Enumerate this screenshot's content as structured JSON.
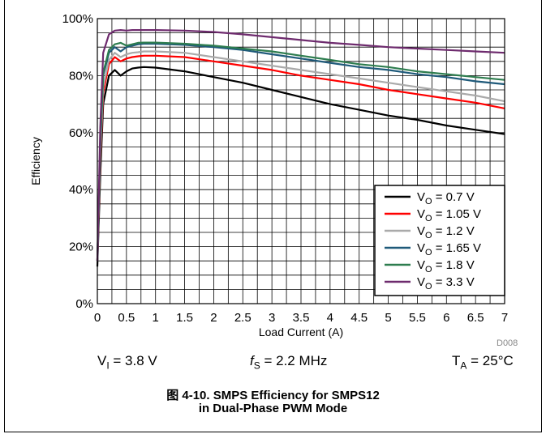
{
  "chart_data": {
    "type": "line",
    "title": "",
    "xlabel": "Load Current (A)",
    "ylabel": "Efficiency",
    "xlim": [
      0,
      7
    ],
    "ylim": [
      0,
      100
    ],
    "x_ticks": [
      "0",
      "0.5",
      "1",
      "1.5",
      "2",
      "2.5",
      "3",
      "3.5",
      "4",
      "4.5",
      "5",
      "5.5",
      "6",
      "6.5",
      "7"
    ],
    "y_ticks": [
      "0%",
      "20%",
      "40%",
      "60%",
      "80%",
      "100%"
    ],
    "grid": true,
    "legend_position": "bottom-right",
    "series": [
      {
        "name": "VO = 0.7 V",
        "legend_base": "V",
        "legend_sub": "O",
        "legend_value": " = 0.7 V",
        "color": "#000000",
        "x": [
          0,
          0.05,
          0.1,
          0.2,
          0.3,
          0.4,
          0.5,
          0.6,
          0.7,
          0.8,
          1.0,
          1.5,
          2.0,
          2.5,
          3.0,
          3.5,
          4.0,
          4.5,
          5.0,
          5.5,
          6.0,
          6.5,
          7.0
        ],
        "y": [
          13,
          45,
          70,
          80,
          82,
          80,
          81.5,
          82.5,
          82.8,
          83,
          82.8,
          81.5,
          79.5,
          77.5,
          75,
          72.5,
          70,
          68,
          66,
          64.5,
          62.5,
          61,
          59.5
        ]
      },
      {
        "name": "VO = 1.05 V",
        "legend_base": "V",
        "legend_sub": "O",
        "legend_value": " = 1.05 V",
        "color": "#ff0000",
        "x": [
          0,
          0.05,
          0.1,
          0.2,
          0.3,
          0.4,
          0.5,
          0.6,
          0.7,
          0.8,
          1.0,
          1.5,
          2.0,
          2.5,
          3.0,
          3.5,
          4.0,
          4.5,
          5.0,
          5.5,
          6.0,
          6.5,
          7.0
        ],
        "y": [
          15,
          50,
          74,
          84,
          86.5,
          85,
          86,
          86.5,
          86.8,
          87,
          87,
          86.5,
          85,
          83.5,
          82,
          80,
          78.5,
          77,
          75,
          73.5,
          72,
          70.5,
          68.5
        ]
      },
      {
        "name": "VO = 1.2 V",
        "legend_base": "V",
        "legend_sub": "O",
        "legend_value": " = 1.2 V",
        "color": "#aaaaaa",
        "x": [
          0,
          0.05,
          0.1,
          0.2,
          0.3,
          0.4,
          0.5,
          0.6,
          0.7,
          0.8,
          1.0,
          1.5,
          2.0,
          2.5,
          3.0,
          3.5,
          4.0,
          4.5,
          5.0,
          5.5,
          6.0,
          6.5,
          7.0
        ],
        "y": [
          15,
          52,
          76,
          85.5,
          88,
          86.5,
          87.5,
          88,
          88.2,
          88.5,
          88.5,
          88,
          86.5,
          85,
          83.5,
          82,
          80.5,
          79,
          77.5,
          76,
          74.5,
          73,
          71
        ]
      },
      {
        "name": "VO = 1.65 V",
        "legend_base": "V",
        "legend_sub": "O",
        "legend_value": " = 1.65 V",
        "color": "#1f5a7a",
        "x": [
          0,
          0.05,
          0.1,
          0.2,
          0.3,
          0.4,
          0.5,
          0.6,
          0.7,
          0.8,
          1.0,
          1.5,
          2.0,
          2.5,
          3.0,
          3.5,
          4.0,
          4.5,
          5.0,
          5.5,
          6.0,
          6.5,
          7.0
        ],
        "y": [
          15,
          55,
          80,
          88,
          90,
          88.5,
          90,
          90.5,
          91,
          91.2,
          91.2,
          90.8,
          90,
          89,
          87.5,
          86,
          84.5,
          83,
          82,
          80.5,
          79.5,
          78,
          77
        ]
      },
      {
        "name": "VO = 1.8 V",
        "legend_base": "V",
        "legend_sub": "O",
        "legend_value": " = 1.8 V",
        "color": "#2e7d4f",
        "x": [
          0,
          0.05,
          0.1,
          0.2,
          0.3,
          0.4,
          0.5,
          0.6,
          0.7,
          0.8,
          1.0,
          1.5,
          2.0,
          2.5,
          3.0,
          3.5,
          4.0,
          4.5,
          5.0,
          5.5,
          6.0,
          6.5,
          7.0
        ],
        "y": [
          15,
          56,
          81,
          89,
          91,
          91.5,
          90.5,
          91,
          91.5,
          91.6,
          91.6,
          91.2,
          90.5,
          89.5,
          88.5,
          87,
          85.5,
          84,
          83,
          81.5,
          80.5,
          79.5,
          78.5
        ]
      },
      {
        "name": "VO = 3.3 V",
        "legend_base": "V",
        "legend_sub": "O",
        "legend_value": " = 3.3 V",
        "color": "#6e2b6e",
        "x": [
          0,
          0.05,
          0.1,
          0.2,
          0.3,
          0.4,
          0.5,
          0.6,
          0.7,
          0.8,
          1.0,
          1.5,
          2.0,
          2.5,
          3.0,
          3.5,
          4.0,
          4.5,
          5.0,
          5.5,
          6.0,
          6.5,
          7.0
        ],
        "y": [
          15,
          62,
          88,
          94.5,
          95.8,
          96,
          95.8,
          96,
          96,
          96,
          96,
          95.8,
          95.3,
          94.5,
          93.5,
          92.5,
          91.5,
          90.8,
          90,
          89.5,
          89,
          88.5,
          88
        ]
      }
    ]
  },
  "code_label": "D008",
  "conditions": {
    "vi": {
      "base": "V",
      "sub": "I",
      "rest": " = 3.8 V"
    },
    "fs": {
      "base": "f",
      "sub": "S",
      "rest": " = 2.2 MHz"
    },
    "ta": {
      "base": "T",
      "sub": "A",
      "rest": " = 25°C"
    }
  },
  "caption": {
    "line1": "图 4-10. SMPS Efficiency for SMPS12",
    "line2": "in Dual-Phase PWM Mode"
  }
}
